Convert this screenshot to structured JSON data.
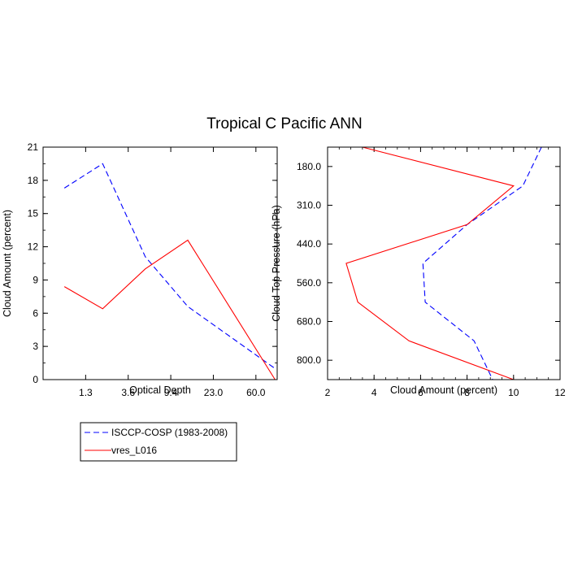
{
  "title": "Tropical C Pacific ANN",
  "chart_data": [
    {
      "type": "line",
      "xlabel": "Optical Depth",
      "ylabel": "Cloud Amount (percent)",
      "x_categories": [
        "1.3",
        "3.6",
        "9.4",
        "23.0",
        "60.0"
      ],
      "ylim": [
        0,
        21
      ],
      "yticks": [
        "0",
        "3",
        "6",
        "9",
        "12",
        "15",
        "18",
        "21"
      ],
      "series": [
        {
          "name": "ISCCP-COSP (1983-2008)",
          "style": "dashed",
          "color": "#0000ff",
          "x": [
            0.0,
            0.9,
            1.9,
            2.9,
            4.0,
            4.95
          ],
          "y": [
            17.3,
            19.5,
            11.1,
            6.6,
            3.6,
            1.0
          ]
        },
        {
          "name": "vres_L016",
          "style": "solid",
          "color": "#ff0000",
          "x": [
            0.0,
            0.9,
            1.9,
            2.9,
            4.95
          ],
          "y": [
            8.4,
            6.4,
            10.0,
            12.6,
            0.0
          ]
        }
      ]
    },
    {
      "type": "line",
      "xlabel": "Cloud Amount (percent)",
      "ylabel": "Cloud Top Pressure (hPa)",
      "xlim": [
        2,
        12
      ],
      "xticks": [
        "2",
        "4",
        "6",
        "8",
        "10",
        "12"
      ],
      "y_categories": [
        "180.0",
        "310.0",
        "440.0",
        "560.0",
        "680.0",
        "800.0"
      ],
      "series": [
        {
          "name": "ISCCP-COSP (1983-2008)",
          "style": "dashed",
          "color": "#0000ff",
          "x": [
            11.2,
            10.4,
            8.0,
            6.1,
            6.2,
            8.3,
            9.1
          ],
          "y": [
            -0.5,
            0.5,
            1.5,
            2.5,
            3.5,
            4.5,
            5.5
          ]
        },
        {
          "name": "vres_L016",
          "style": "solid",
          "color": "#ff0000",
          "x": [
            3.5,
            10.0,
            8.0,
            2.8,
            3.3,
            5.5,
            10.0
          ],
          "y": [
            -0.5,
            0.5,
            1.5,
            2.5,
            3.5,
            4.5,
            5.5
          ]
        }
      ]
    }
  ],
  "legend": [
    {
      "label": "ISCCP-COSP (1983-2008)",
      "style": "dashed",
      "color": "#0000ff"
    },
    {
      "label": "vres_L016",
      "style": "solid",
      "color": "#ff0000"
    }
  ]
}
